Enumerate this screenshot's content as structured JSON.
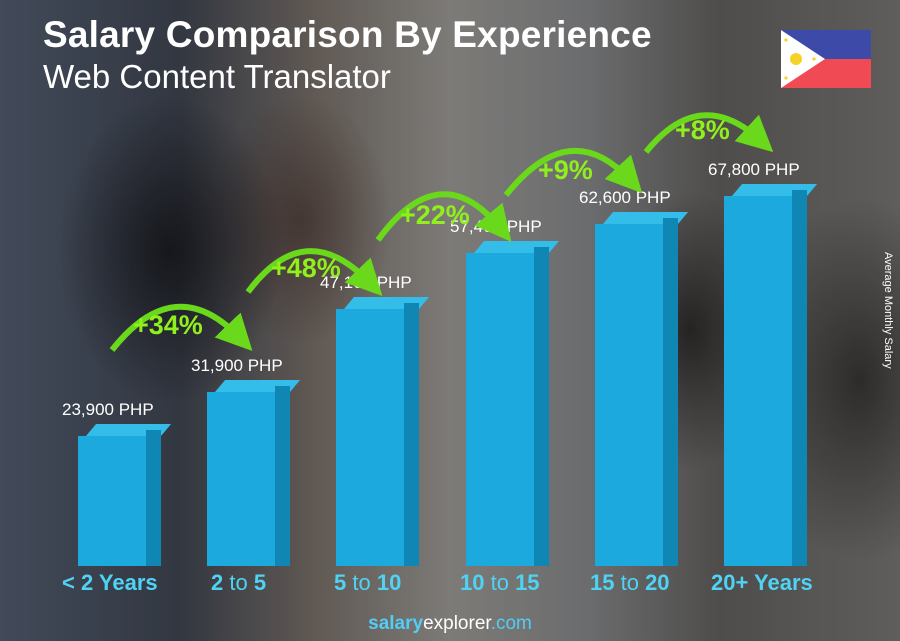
{
  "header": {
    "title": "Salary Comparison By Experience",
    "subtitle": "Web Content Translator"
  },
  "flag": {
    "country": "Philippines",
    "colors": {
      "blue": "#3d4aa8",
      "red": "#f04a55",
      "white": "#ffffff",
      "sun": "#f5d12a"
    }
  },
  "axis": {
    "ylabel": "Average Monthly Salary"
  },
  "footer": {
    "brand_bold": "salary",
    "brand_rest": "explorer",
    "brand_tld": ".com"
  },
  "colors": {
    "bar_front": "#1ba9de",
    "bar_side": "#0f86b4",
    "bar_top": "#34bde9",
    "increase": "#8ff01c",
    "category": "#4fd3f5"
  },
  "chart_data": {
    "type": "bar",
    "title": "Salary Comparison By Experience",
    "subtitle": "Web Content Translator",
    "xlabel": "",
    "ylabel": "Average Monthly Salary",
    "currency": "PHP",
    "categories": [
      "< 2 Years",
      "2 to 5",
      "5 to 10",
      "10 to 15",
      "15 to 20",
      "20+ Years"
    ],
    "values": [
      23900,
      31900,
      47100,
      57400,
      62600,
      67800
    ],
    "value_labels": [
      "23,900 PHP",
      "31,900 PHP",
      "47,100 PHP",
      "57,400 PHP",
      "62,600 PHP",
      "67,800 PHP"
    ],
    "increases": [
      "+34%",
      "+48%",
      "+22%",
      "+9%",
      "+8%"
    ],
    "grid": false,
    "legend": "none"
  },
  "categories_display": [
    {
      "a": "< 2 Years",
      "mid": "",
      "b": ""
    },
    {
      "a": "2",
      "mid": " to ",
      "b": "5"
    },
    {
      "a": "5",
      "mid": " to ",
      "b": "10"
    },
    {
      "a": "10",
      "mid": " to ",
      "b": "15"
    },
    {
      "a": "15",
      "mid": " to ",
      "b": "20"
    },
    {
      "a": "20+ Years",
      "mid": "",
      "b": ""
    }
  ]
}
